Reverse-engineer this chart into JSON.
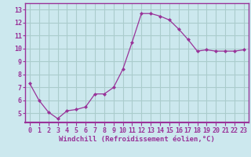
{
  "x": [
    0,
    1,
    2,
    3,
    4,
    5,
    6,
    7,
    8,
    9,
    10,
    11,
    12,
    13,
    14,
    15,
    16,
    17,
    18,
    19,
    20,
    21,
    22,
    23
  ],
  "y": [
    7.3,
    6.0,
    5.1,
    4.6,
    5.2,
    5.3,
    5.5,
    6.5,
    6.5,
    7.0,
    8.4,
    10.5,
    12.7,
    12.7,
    12.5,
    12.2,
    11.5,
    10.7,
    9.8,
    9.9,
    9.8,
    9.8,
    9.8,
    9.9
  ],
  "line_color": "#993399",
  "marker": "D",
  "marker_size": 2.0,
  "bg_color": "#cce8ee",
  "grid_color": "#aacccc",
  "xlabel": "Windchill (Refroidissement éolien,°C)",
  "xlabel_color": "#993399",
  "xtick_labels": [
    "0",
    "1",
    "2",
    "3",
    "4",
    "5",
    "6",
    "7",
    "8",
    "9",
    "10",
    "11",
    "12",
    "13",
    "14",
    "15",
    "16",
    "17",
    "18",
    "19",
    "20",
    "21",
    "22",
    "23"
  ],
  "ytick_labels": [
    "5",
    "6",
    "7",
    "8",
    "9",
    "10",
    "11",
    "12",
    "13"
  ],
  "ylim": [
    4.3,
    13.5
  ],
  "xlim": [
    -0.5,
    23.5
  ],
  "tick_color": "#993399",
  "spine_color": "#993399",
  "label_fontsize": 6.5,
  "tick_fontsize": 6.0
}
